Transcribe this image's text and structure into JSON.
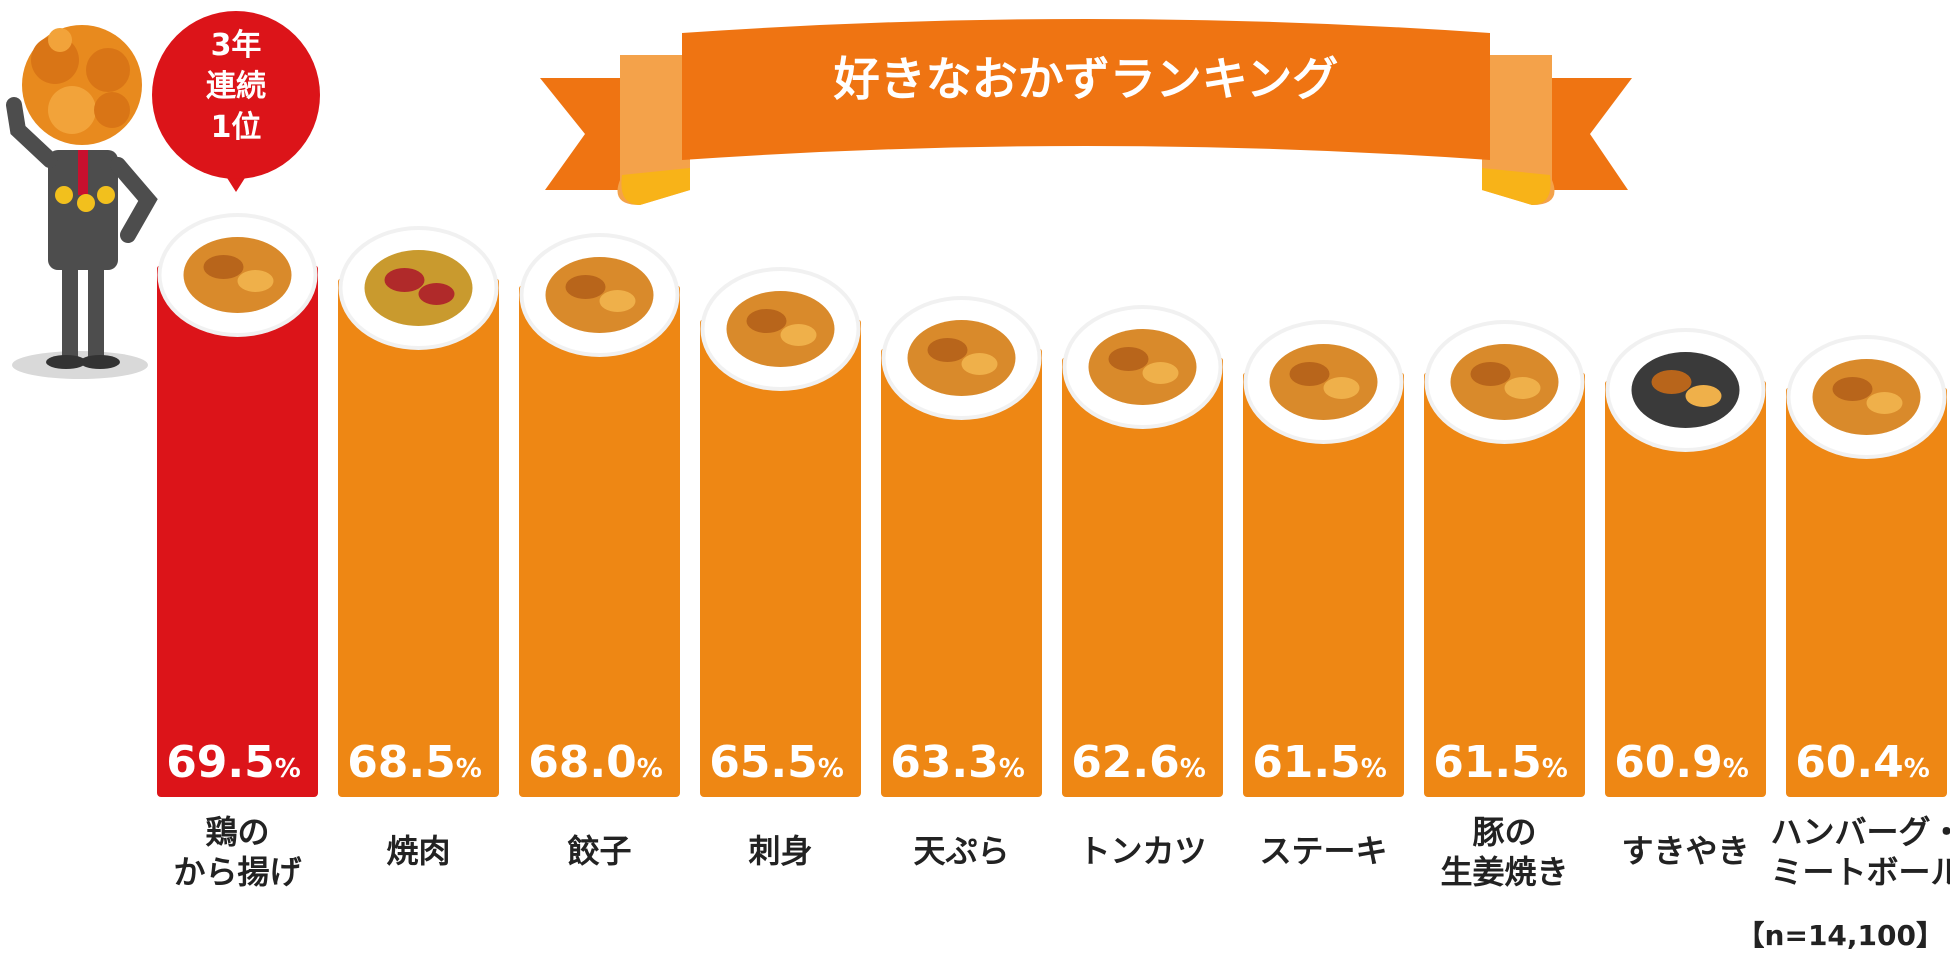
{
  "colors": {
    "bar": "#ee8714",
    "highlight_bar": "#dc1419",
    "ribbon": "#ef7412",
    "ribbon_light": "#f4a24a",
    "ribbon_gold": "#f8b318",
    "badge": "#dc1419",
    "text_dark": "#222222"
  },
  "badge": {
    "lines": [
      "3年",
      "連続",
      "1位"
    ]
  },
  "chart_data": {
    "type": "bar",
    "title": "好きなおかずランキング",
    "unit": "%",
    "categories": [
      [
        "鶏の",
        "から揚げ"
      ],
      [
        "焼肉"
      ],
      [
        "餃子"
      ],
      [
        "刺身"
      ],
      [
        "天ぷら"
      ],
      [
        "トンカツ"
      ],
      [
        "ステーキ"
      ],
      [
        "豚の",
        "生姜焼き"
      ],
      [
        "すきやき"
      ],
      [
        "ハンバーグ・",
        "ミートボール"
      ]
    ],
    "values": [
      69.5,
      68.5,
      68.0,
      65.5,
      63.3,
      62.6,
      61.5,
      61.5,
      60.9,
      60.4
    ],
    "value_labels": [
      "69.5",
      "68.5",
      "68.0",
      "65.5",
      "63.3",
      "62.6",
      "61.5",
      "61.5",
      "60.9",
      "60.4"
    ],
    "highlight_index": 0,
    "note": "【n=14,100】",
    "food_icons": [
      "karaage-plate-icon",
      "yakiniku-grill-icon",
      "gyoza-plate-icon",
      "sashimi-plate-icon",
      "tempura-plate-icon",
      "tonkatsu-plate-icon",
      "steak-plate-icon",
      "shogayaki-plate-icon",
      "sukiyaki-pot-icon",
      "hamburg-plate-icon"
    ]
  }
}
